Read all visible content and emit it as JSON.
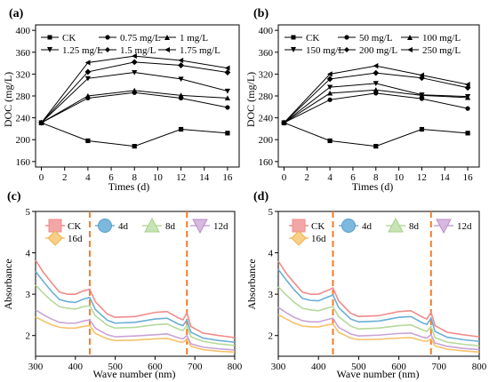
{
  "chart_data": [
    {
      "panel_label": "(a)",
      "type": "line",
      "xlabel": "Times (d)",
      "ylabel": "DOC (mg/L)",
      "xlim": [
        -0.5,
        17
      ],
      "ylim": [
        150,
        410
      ],
      "xticks": [
        0,
        2,
        4,
        6,
        8,
        10,
        12,
        14,
        16
      ],
      "yticks": [
        160,
        200,
        240,
        280,
        320,
        360,
        400
      ],
      "x": [
        0,
        4,
        8,
        12,
        16
      ],
      "legend_position": "top",
      "series": [
        {
          "name": "CK",
          "marker": "square",
          "values": [
            231,
            198,
            188,
            219,
            212
          ]
        },
        {
          "name": "0.75 mg/L",
          "marker": "circle",
          "values": [
            231,
            276,
            286,
            276,
            259
          ]
        },
        {
          "name": "1 mg/L",
          "marker": "triangle-up",
          "values": [
            231,
            280,
            290,
            281,
            276
          ]
        },
        {
          "name": "1.25 mg/L",
          "marker": "triangle-down",
          "values": [
            231,
            312,
            323,
            311,
            289
          ]
        },
        {
          "name": "1.5 mg/L",
          "marker": "diamond",
          "values": [
            231,
            324,
            342,
            336,
            323
          ]
        },
        {
          "name": "1.75 mg/L",
          "marker": "triangle-left",
          "values": [
            231,
            341,
            353,
            345,
            331
          ]
        }
      ]
    },
    {
      "panel_label": "(b)",
      "type": "line",
      "xlabel": "Times (d)",
      "ylabel": "DOC (mg/L)",
      "xlim": [
        -0.5,
        17
      ],
      "ylim": [
        150,
        410
      ],
      "xticks": [
        0,
        2,
        4,
        6,
        8,
        10,
        12,
        14,
        16
      ],
      "yticks": [
        160,
        200,
        240,
        280,
        320,
        360,
        400
      ],
      "x": [
        0,
        4,
        8,
        12,
        16
      ],
      "legend_position": "top",
      "series": [
        {
          "name": "CK",
          "marker": "square",
          "values": [
            231,
            198,
            188,
            219,
            212
          ]
        },
        {
          "name": "50 mg/L",
          "marker": "circle",
          "values": [
            231,
            273,
            285,
            275,
            257
          ]
        },
        {
          "name": "100 mg/L",
          "marker": "triangle-up",
          "values": [
            231,
            285,
            291,
            281,
            277
          ]
        },
        {
          "name": "150 mg/L",
          "marker": "triangle-down",
          "values": [
            231,
            296,
            303,
            282,
            279
          ]
        },
        {
          "name": "200 mg/L",
          "marker": "diamond",
          "values": [
            231,
            311,
            322,
            313,
            295
          ]
        },
        {
          "name": "250 mg/L",
          "marker": "triangle-left",
          "values": [
            231,
            320,
            335,
            318,
            301
          ]
        }
      ]
    },
    {
      "panel_label": "(c)",
      "type": "line",
      "xlabel": "Wave number (nm)",
      "ylabel": "Absorbance",
      "xlim": [
        300,
        800
      ],
      "ylim": [
        1.5,
        5
      ],
      "xticks": [
        300,
        400,
        500,
        600,
        700,
        800
      ],
      "yticks": [
        2,
        3,
        4,
        5
      ],
      "reference_lines_x": [
        436,
        680
      ],
      "x": [
        300,
        320,
        340,
        360,
        380,
        400,
        420,
        436,
        450,
        480,
        500,
        550,
        600,
        630,
        660,
        670,
        680,
        690,
        720,
        760,
        800
      ],
      "series": [
        {
          "name": "CK",
          "color": "#F08C8C",
          "values": [
            3.82,
            3.52,
            3.28,
            3.05,
            3.0,
            3.0,
            3.08,
            3.12,
            2.82,
            2.52,
            2.44,
            2.46,
            2.56,
            2.58,
            2.42,
            2.38,
            2.55,
            2.22,
            2.06,
            2.0,
            1.95
          ]
        },
        {
          "name": "4d",
          "color": "#6BAED6",
          "values": [
            3.55,
            3.3,
            3.07,
            2.87,
            2.82,
            2.8,
            2.88,
            2.92,
            2.63,
            2.37,
            2.3,
            2.32,
            2.4,
            2.42,
            2.27,
            2.24,
            2.38,
            2.08,
            1.94,
            1.88,
            1.84
          ]
        },
        {
          "name": "8d",
          "color": "#B5D99C",
          "values": [
            3.22,
            3.02,
            2.84,
            2.7,
            2.66,
            2.64,
            2.7,
            2.72,
            2.48,
            2.25,
            2.18,
            2.2,
            2.26,
            2.28,
            2.15,
            2.12,
            2.24,
            1.97,
            1.86,
            1.8,
            1.76
          ]
        },
        {
          "name": "12d",
          "color": "#C9A3D4",
          "values": [
            2.62,
            2.5,
            2.4,
            2.32,
            2.3,
            2.3,
            2.35,
            2.38,
            2.18,
            2.02,
            1.97,
            1.99,
            2.02,
            2.04,
            1.94,
            1.92,
            2.0,
            1.8,
            1.72,
            1.68,
            1.65
          ]
        },
        {
          "name": "16d",
          "color": "#F5C26B",
          "values": [
            2.45,
            2.35,
            2.26,
            2.2,
            2.18,
            2.18,
            2.22,
            2.24,
            2.05,
            1.92,
            1.88,
            1.89,
            1.92,
            1.93,
            1.85,
            1.84,
            1.9,
            1.74,
            1.66,
            1.62,
            1.6
          ]
        }
      ]
    },
    {
      "panel_label": "(d)",
      "type": "line",
      "xlabel": "Wave number (nm)",
      "ylabel": "Absorbance",
      "xlim": [
        300,
        800
      ],
      "ylim": [
        1.5,
        5
      ],
      "xticks": [
        300,
        400,
        500,
        600,
        700,
        800
      ],
      "yticks": [
        2,
        3,
        4,
        5
      ],
      "reference_lines_x": [
        436,
        680
      ],
      "x": [
        300,
        320,
        340,
        360,
        380,
        400,
        420,
        436,
        450,
        480,
        500,
        550,
        600,
        630,
        660,
        670,
        680,
        690,
        720,
        760,
        800
      ],
      "series": [
        {
          "name": "CK",
          "color": "#F08C8C",
          "values": [
            3.8,
            3.5,
            3.27,
            3.05,
            3.0,
            3.0,
            3.08,
            3.15,
            2.84,
            2.54,
            2.46,
            2.48,
            2.58,
            2.6,
            2.44,
            2.4,
            2.56,
            2.24,
            2.08,
            2.02,
            1.97
          ]
        },
        {
          "name": "4d",
          "color": "#6BAED6",
          "values": [
            3.6,
            3.34,
            3.1,
            2.9,
            2.85,
            2.84,
            2.92,
            2.98,
            2.68,
            2.4,
            2.33,
            2.35,
            2.44,
            2.46,
            2.3,
            2.27,
            2.42,
            2.1,
            1.96,
            1.9,
            1.86
          ]
        },
        {
          "name": "8d",
          "color": "#B5D99C",
          "values": [
            3.18,
            2.98,
            2.8,
            2.66,
            2.62,
            2.6,
            2.66,
            2.7,
            2.46,
            2.23,
            2.16,
            2.18,
            2.24,
            2.26,
            2.13,
            2.1,
            2.22,
            1.95,
            1.84,
            1.79,
            1.75
          ]
        },
        {
          "name": "12d",
          "color": "#C9A3D4",
          "values": [
            2.68,
            2.55,
            2.44,
            2.36,
            2.33,
            2.33,
            2.38,
            2.42,
            2.2,
            2.04,
            1.99,
            2.01,
            2.05,
            2.06,
            1.96,
            1.94,
            2.02,
            1.82,
            1.74,
            1.69,
            1.66
          ]
        },
        {
          "name": "16d",
          "color": "#F5C26B",
          "values": [
            2.5,
            2.4,
            2.3,
            2.23,
            2.21,
            2.21,
            2.25,
            2.28,
            2.08,
            1.94,
            1.9,
            1.91,
            1.94,
            1.95,
            1.87,
            1.86,
            1.92,
            1.75,
            1.67,
            1.63,
            1.6
          ]
        }
      ]
    }
  ]
}
